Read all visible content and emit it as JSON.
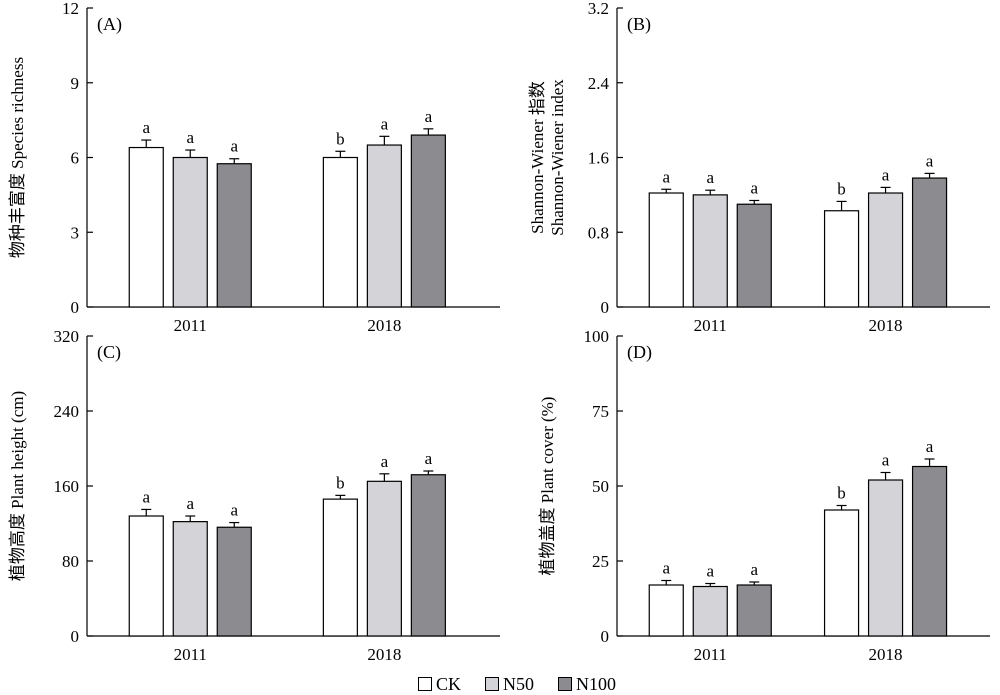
{
  "chart_data": [
    {
      "type": "bar",
      "panel_label": "(A)",
      "ylabel": "物种丰富度 Species richness",
      "ylim": [
        0,
        12
      ],
      "yticks": [
        "0",
        "3",
        "6",
        "9",
        "12"
      ],
      "categories": [
        "2011",
        "2018"
      ],
      "series": [
        {
          "name": "CK",
          "values": [
            6.4,
            6.0
          ],
          "errors": [
            0.3,
            0.25
          ],
          "letters": [
            "a",
            "b"
          ]
        },
        {
          "name": "N50",
          "values": [
            6.0,
            6.5
          ],
          "errors": [
            0.3,
            0.35
          ],
          "letters": [
            "a",
            "a"
          ]
        },
        {
          "name": "N100",
          "values": [
            5.75,
            6.9
          ],
          "errors": [
            0.2,
            0.25
          ],
          "letters": [
            "a",
            "a"
          ]
        }
      ]
    },
    {
      "type": "bar",
      "panel_label": "(B)",
      "ylabel": "Shannon-Wiener 指数 Shannon-Wiener index",
      "ylim": [
        0,
        3.2
      ],
      "yticks": [
        "0",
        "0.8",
        "1.6",
        "2.4",
        "3.2"
      ],
      "categories": [
        "2011",
        "2018"
      ],
      "series": [
        {
          "name": "CK",
          "values": [
            1.22,
            1.03
          ],
          "errors": [
            0.04,
            0.1
          ],
          "letters": [
            "a",
            "b"
          ]
        },
        {
          "name": "N50",
          "values": [
            1.2,
            1.22
          ],
          "errors": [
            0.05,
            0.06
          ],
          "letters": [
            "a",
            "a"
          ]
        },
        {
          "name": "N100",
          "values": [
            1.1,
            1.38
          ],
          "errors": [
            0.04,
            0.05
          ],
          "letters": [
            "a",
            "a"
          ]
        }
      ]
    },
    {
      "type": "bar",
      "panel_label": "(C)",
      "ylabel": "植物高度 Plant height (cm)",
      "ylim": [
        0,
        320
      ],
      "yticks": [
        "0",
        "80",
        "160",
        "240",
        "320"
      ],
      "categories": [
        "2011",
        "2018"
      ],
      "series": [
        {
          "name": "CK",
          "values": [
            128,
            146
          ],
          "errors": [
            7,
            4
          ],
          "letters": [
            "a",
            "b"
          ]
        },
        {
          "name": "N50",
          "values": [
            122,
            165
          ],
          "errors": [
            6,
            8
          ],
          "letters": [
            "a",
            "a"
          ]
        },
        {
          "name": "N100",
          "values": [
            116,
            172
          ],
          "errors": [
            5,
            4
          ],
          "letters": [
            "a",
            "a"
          ]
        }
      ]
    },
    {
      "type": "bar",
      "panel_label": "(D)",
      "ylabel": "植物盖度 Plant cover (%)",
      "ylim": [
        0,
        100
      ],
      "yticks": [
        "0",
        "25",
        "50",
        "75",
        "100"
      ],
      "categories": [
        "2011",
        "2018"
      ],
      "series": [
        {
          "name": "CK",
          "values": [
            17,
            42
          ],
          "errors": [
            1.5,
            1.5
          ],
          "letters": [
            "a",
            "b"
          ]
        },
        {
          "name": "N50",
          "values": [
            16.5,
            52
          ],
          "errors": [
            1,
            2.5
          ],
          "letters": [
            "a",
            "a"
          ]
        },
        {
          "name": "N100",
          "values": [
            17,
            56.5
          ],
          "errors": [
            1,
            2.5
          ],
          "letters": [
            "a",
            "a"
          ]
        }
      ]
    }
  ],
  "legend": [
    {
      "label": "CK",
      "color": "#ffffff"
    },
    {
      "label": "N50",
      "color": "#d4d4d8"
    },
    {
      "label": "N100",
      "color": "#8c8c90"
    }
  ],
  "x_categories": [
    "2011",
    "2018"
  ]
}
